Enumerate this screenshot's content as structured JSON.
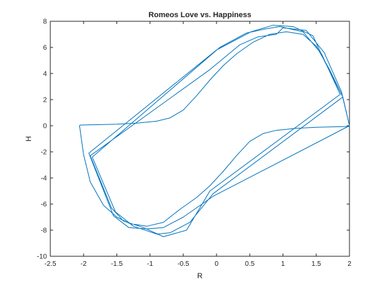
{
  "chart_data": {
    "type": "line",
    "title": "Romeos Love vs. Happiness",
    "xlabel": "R",
    "ylabel": "H",
    "xlim": [
      -2.5,
      2
    ],
    "ylim": [
      -10,
      8
    ],
    "xticks": [
      "-2.5",
      "-2",
      "-1.5",
      "-1",
      "-0.5",
      "0",
      "0.5",
      "1",
      "1.5",
      "2"
    ],
    "yticks": [
      "-10",
      "-8",
      "-6",
      "-4",
      "-2",
      "0",
      "2",
      "4",
      "6",
      "8"
    ],
    "grid": false,
    "series": [
      {
        "color": "#0072BD",
        "x": [
          2.0,
          1.9,
          1.7,
          1.5,
          1.3,
          1.05,
          0.8,
          0.55,
          0.3,
          0.1,
          -0.1,
          -0.3,
          -0.5,
          -0.7,
          -0.9,
          -1.2,
          -1.5,
          -1.8,
          -2.05,
          -2.06,
          -2.0,
          -1.9,
          -1.7,
          -1.5,
          -1.3,
          -1.05,
          -0.8,
          -0.55,
          -0.3,
          -0.1,
          0.1,
          0.3,
          0.5,
          0.7,
          0.9,
          1.2,
          1.5,
          1.8,
          2.0,
          2.0,
          1.88,
          1.62,
          1.35,
          1.0,
          0.9,
          0.62,
          0.35,
          -0.1,
          -1.9,
          -1.58,
          -1.4,
          -1.1,
          -0.8,
          -0.45,
          -0.1,
          1.86,
          1.58,
          1.3,
          0.95,
          0.72,
          0.45,
          0.05,
          -1.87,
          -1.52,
          -1.25,
          -0.9,
          -0.7,
          -0.4,
          -0.05,
          1.9,
          1.62,
          1.45,
          1.15,
          0.85,
          0.52,
          0.0,
          -1.92,
          -1.55,
          -1.32,
          -1.05,
          -0.8,
          -0.5,
          -0.05,
          2.0
        ],
        "y": [
          0.0,
          2.2,
          4.3,
          6.1,
          7.0,
          7.2,
          7.0,
          6.4,
          5.5,
          4.6,
          3.5,
          2.3,
          1.2,
          0.6,
          0.35,
          0.2,
          0.12,
          0.08,
          0.05,
          0.0,
          -2.2,
          -4.3,
          -6.1,
          -7.0,
          -7.5,
          -7.7,
          -7.4,
          -6.4,
          -5.5,
          -4.6,
          -3.5,
          -2.3,
          -1.2,
          -0.6,
          -0.35,
          -0.2,
          -0.12,
          -0.08,
          -0.05,
          0.0,
          2.6,
          5.6,
          7.3,
          7.5,
          7.0,
          6.8,
          6.2,
          4.3,
          -2.3,
          -6.3,
          -7.3,
          -7.8,
          -8.5,
          -8.0,
          -5.0,
          2.4,
          5.5,
          7.2,
          7.6,
          7.4,
          7.1,
          6.0,
          -2.4,
          -6.6,
          -7.7,
          -8.3,
          -8.2,
          -7.4,
          -5.2,
          2.2,
          5.0,
          6.9,
          7.6,
          7.7,
          7.2,
          5.8,
          -2.1,
          -6.9,
          -7.8,
          -7.9,
          -7.8,
          -7.0,
          -5.4,
          0.0
        ]
      }
    ]
  }
}
